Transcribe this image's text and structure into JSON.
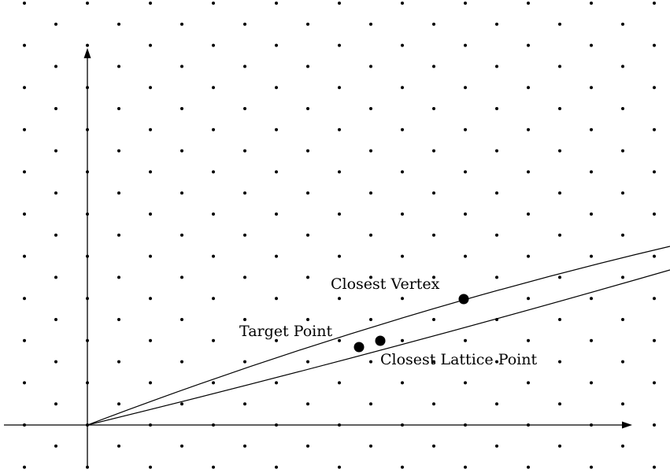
{
  "labels": {
    "closest_vertex": "Closest Vertex",
    "target_point": "Target Point",
    "closest_lattice_point": "Closest Lattice Point"
  },
  "colors": {
    "ink": "#000000",
    "background": "#ffffff"
  }
}
